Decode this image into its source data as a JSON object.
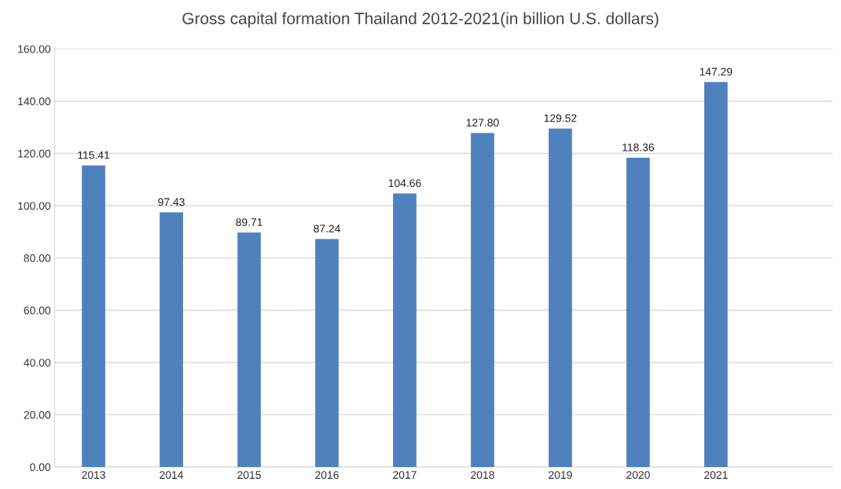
{
  "chart_data": {
    "type": "bar",
    "title": "Gross capital formation Thailand 2012-2021(in billion U.S. dollars)",
    "categories": [
      "2013",
      "2014",
      "2015",
      "2016",
      "2017",
      "2018",
      "2019",
      "2020",
      "2021",
      null
    ],
    "values": [
      115.41,
      97.43,
      89.71,
      87.24,
      104.66,
      127.8,
      129.52,
      118.36,
      147.29,
      null
    ],
    "value_labels": [
      "115.41",
      "97.43",
      "89.71",
      "87.24",
      "104.66",
      "127.80",
      "129.52",
      "118.36",
      "147.29",
      null
    ],
    "color": "#4f81bd",
    "ylim": [
      0,
      160
    ],
    "yticks": [
      {
        "value": 0,
        "label": "0.00"
      },
      {
        "value": 20,
        "label": "20.00"
      },
      {
        "value": 40,
        "label": "40.00"
      },
      {
        "value": 60,
        "label": "60.00"
      },
      {
        "value": 80,
        "label": "80.00"
      },
      {
        "value": 100,
        "label": "100.00"
      },
      {
        "value": 120,
        "label": "120.00"
      },
      {
        "value": 140,
        "label": "140.00"
      },
      {
        "value": 160,
        "label": "160.00"
      }
    ],
    "grid": "y"
  }
}
